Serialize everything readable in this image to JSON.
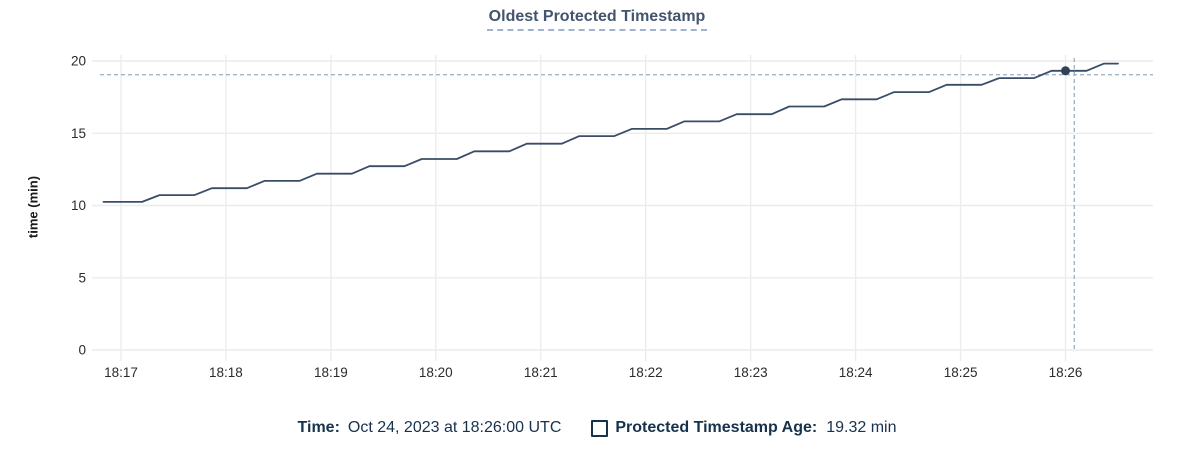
{
  "colors": {
    "line": "#3a4d66",
    "marker": "#2e4156",
    "crosshair": "#9fb6c6",
    "grid": "#ececec",
    "tick_text": "#2b2b2b",
    "title_text": "#44546d",
    "title_underline": "#9db3d1",
    "footer_text": "#16324d"
  },
  "footer": {
    "time_label": "Time:",
    "time_value": "Oct 24, 2023 at 18:26:00 UTC",
    "series_label": "Protected Timestamp Age:",
    "series_value": "19.32 min",
    "checkbox_icon": "empty-square"
  },
  "chart_data": {
    "type": "line",
    "title": "Oldest Protected Timestamp",
    "xlabel": "",
    "ylabel": "time (min)",
    "ylim": [
      0,
      20
    ],
    "yticks": [
      0,
      5,
      10,
      15,
      20
    ],
    "x_domain_seconds": [
      -12,
      590
    ],
    "xticks": [
      {
        "t": 0,
        "label": "18:17"
      },
      {
        "t": 60,
        "label": "18:18"
      },
      {
        "t": 120,
        "label": "18:19"
      },
      {
        "t": 180,
        "label": "18:20"
      },
      {
        "t": 240,
        "label": "18:21"
      },
      {
        "t": 300,
        "label": "18:22"
      },
      {
        "t": 360,
        "label": "18:23"
      },
      {
        "t": 420,
        "label": "18:24"
      },
      {
        "t": 480,
        "label": "18:25"
      },
      {
        "t": 540,
        "label": "18:26"
      }
    ],
    "grid": true,
    "legend_position": "bottom",
    "series": [
      {
        "name": "Protected Timestamp Age",
        "unit": "min",
        "points": [
          [
            -10,
            10.25
          ],
          [
            12,
            10.25
          ],
          [
            22,
            10.72
          ],
          [
            42,
            10.72
          ],
          [
            52,
            11.2
          ],
          [
            72,
            11.2
          ],
          [
            82,
            11.7
          ],
          [
            102,
            11.7
          ],
          [
            112,
            12.2
          ],
          [
            132,
            12.2
          ],
          [
            142,
            12.72
          ],
          [
            162,
            12.72
          ],
          [
            172,
            13.22
          ],
          [
            192,
            13.22
          ],
          [
            202,
            13.75
          ],
          [
            222,
            13.75
          ],
          [
            232,
            14.28
          ],
          [
            252,
            14.28
          ],
          [
            262,
            14.8
          ],
          [
            282,
            14.8
          ],
          [
            292,
            15.3
          ],
          [
            312,
            15.3
          ],
          [
            322,
            15.82
          ],
          [
            342,
            15.82
          ],
          [
            352,
            16.32
          ],
          [
            372,
            16.32
          ],
          [
            382,
            16.85
          ],
          [
            402,
            16.85
          ],
          [
            412,
            17.35
          ],
          [
            432,
            17.35
          ],
          [
            442,
            17.85
          ],
          [
            462,
            17.85
          ],
          [
            472,
            18.35
          ],
          [
            492,
            18.35
          ],
          [
            502,
            18.82
          ],
          [
            522,
            18.82
          ],
          [
            532,
            19.32
          ],
          [
            552,
            19.32
          ],
          [
            562,
            19.82
          ],
          [
            570,
            19.82
          ]
        ]
      }
    ],
    "hover": {
      "t": 540,
      "value": 19.32,
      "time_label": "Oct 24, 2023 at 18:26:00 UTC",
      "crosshair_x_t": 545,
      "crosshair_y_value": 19.05
    }
  }
}
